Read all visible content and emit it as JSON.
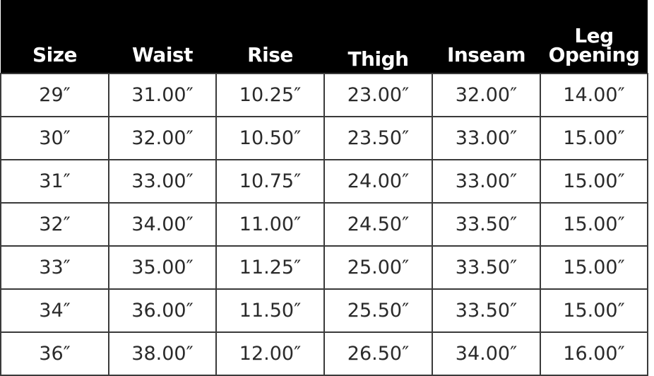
{
  "table": {
    "headers": [
      "Size",
      "Waist",
      "Rise",
      "Thigh",
      "Inseam",
      "Leg Opening"
    ],
    "header_lines": {
      "leg_opening_line1": "Leg",
      "leg_opening_line2": "Opening"
    },
    "rows": [
      [
        "29″",
        "31.00″",
        "10.25″",
        "23.00″",
        "32.00″",
        "14.00″"
      ],
      [
        "30″",
        "32.00″",
        "10.50″",
        "23.50″",
        "33.00″",
        "15.00″"
      ],
      [
        "31″",
        "33.00″",
        "10.75″",
        "24.00″",
        "33.00″",
        "15.00″"
      ],
      [
        "32″",
        "34.00″",
        "11.00″",
        "24.50″",
        "33.50″",
        "15.00″"
      ],
      [
        "33″",
        "35.00″",
        "11.25″",
        "25.00″",
        "33.50″",
        "15.00″"
      ],
      [
        "34″",
        "36.00″",
        "11.50″",
        "25.50″",
        "33.50″",
        "15.00″"
      ],
      [
        "36″",
        "38.00″",
        "12.00″",
        "26.50″",
        "34.00″",
        "16.00″"
      ]
    ],
    "colors": {
      "header_bg": "#000000",
      "header_text": "#ffffff",
      "border": "#3a3a3a"
    }
  }
}
